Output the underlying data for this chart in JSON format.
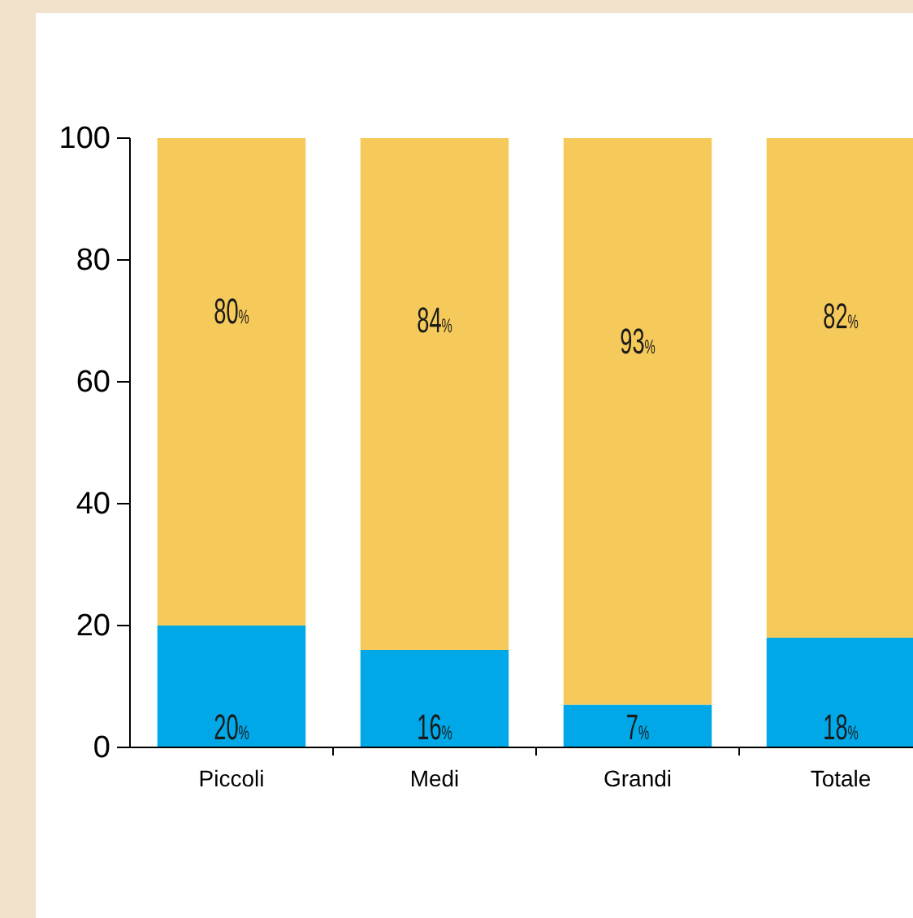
{
  "chart_data": {
    "type": "bar",
    "stacked": true,
    "categories": [
      "Piccoli",
      "Medi",
      "Grandi",
      "Totale"
    ],
    "series": [
      {
        "color": "#00a8e8",
        "values": [
          20,
          16,
          7,
          18
        ],
        "value_labels": [
          "20%",
          "16%",
          "7%",
          "18%"
        ]
      },
      {
        "color": "#f5c95a",
        "values": [
          80,
          84,
          93,
          82
        ],
        "value_labels": [
          "80%",
          "84%",
          "93%",
          "82%"
        ]
      }
    ],
    "ylim": [
      0,
      100
    ],
    "yticks": [
      0,
      20,
      40,
      60,
      80,
      100
    ],
    "grid": false
  }
}
